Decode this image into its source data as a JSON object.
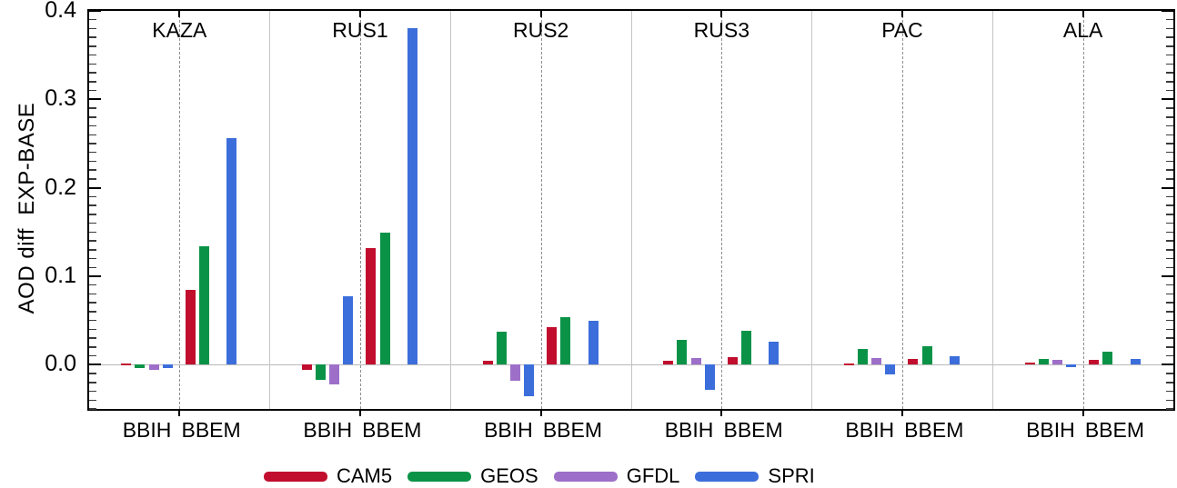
{
  "figure": {
    "ylabel": "AOD diff  EXP-BASE"
  },
  "chart_data": {
    "type": "bar",
    "title": "",
    "ylabel": "AOD diff  EXP-BASE",
    "xlabel": "",
    "ylim": [
      -0.05,
      0.4
    ],
    "yticks": [
      0.0,
      0.1,
      0.2,
      0.3,
      0.4
    ],
    "ytick_labels": [
      "0.0",
      "0.1",
      "0.2",
      "0.3",
      "0.4"
    ],
    "minor_tick_step": 0.01,
    "grid": "horizontal zero line only",
    "legend_position": "bottom",
    "groups": [
      "BBIH",
      "BBEM"
    ],
    "series": [
      {
        "name": "CAM5",
        "color": "#c10e2e"
      },
      {
        "name": "GEOS",
        "color": "#0a9347"
      },
      {
        "name": "GFDL",
        "color": "#9d6fc8"
      },
      {
        "name": "SPRI",
        "color": "#3c6edb"
      }
    ],
    "panels": [
      {
        "name": "KAZA",
        "values": {
          "BBIH": [
            0.001,
            -0.004,
            -0.006,
            -0.004
          ],
          "BBEM": [
            0.085,
            0.134,
            0,
            0.256
          ]
        }
      },
      {
        "name": "RUS1",
        "values": {
          "BBIH": [
            -0.006,
            -0.017,
            -0.022,
            0.077
          ],
          "BBEM": [
            0.132,
            0.149,
            0,
            0.38
          ]
        }
      },
      {
        "name": "RUS2",
        "values": {
          "BBIH": [
            0.004,
            0.037,
            -0.018,
            -0.036
          ],
          "BBEM": [
            0.042,
            0.054,
            0,
            0.05
          ]
        }
      },
      {
        "name": "RUS3",
        "values": {
          "BBIH": [
            0.004,
            0.028,
            0.008,
            -0.028
          ],
          "BBEM": [
            0.009,
            0.038,
            0,
            0.026
          ]
        }
      },
      {
        "name": "PAC",
        "values": {
          "BBIH": [
            0.001,
            0.018,
            0.008,
            -0.011
          ],
          "BBEM": [
            0.006,
            0.021,
            0,
            0.01
          ]
        }
      },
      {
        "name": "ALA",
        "values": {
          "BBIH": [
            0.002,
            0.006,
            0.005,
            -0.003
          ],
          "BBEM": [
            0.005,
            0.015,
            0,
            0.006
          ]
        }
      }
    ],
    "colors": {
      "zero_line": "#b9b9b9",
      "panel_divider": "#c4c4c4",
      "group_separator_dashed": "#8f8f8f",
      "axis_frame": "#000000"
    }
  }
}
